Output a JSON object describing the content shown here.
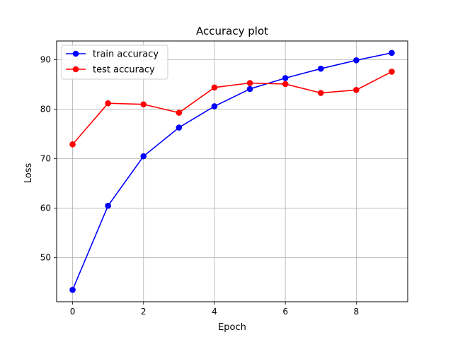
{
  "chart_data": {
    "type": "line",
    "title": "Accuracy plot",
    "xlabel": "Epoch",
    "ylabel": "Loss",
    "x": [
      0,
      1,
      2,
      3,
      4,
      5,
      6,
      7,
      8,
      9
    ],
    "xlim": [
      -0.45,
      9.45
    ],
    "ylim": [
      41.1,
      93.8
    ],
    "xticks": [
      0,
      2,
      4,
      6,
      8
    ],
    "yticks": [
      50,
      60,
      70,
      80,
      90
    ],
    "grid": true,
    "legend_position": "upper-left",
    "series": [
      {
        "name": "train accuracy",
        "color": "#0000ff",
        "marker": "circle",
        "values": [
          43.5,
          60.5,
          70.5,
          76.3,
          80.6,
          84.1,
          86.3,
          88.2,
          89.9,
          91.4
        ]
      },
      {
        "name": "test accuracy",
        "color": "#ff0000",
        "marker": "circle",
        "values": [
          72.9,
          81.2,
          81.0,
          79.3,
          84.4,
          85.3,
          85.1,
          83.3,
          83.9,
          87.6
        ]
      }
    ]
  }
}
